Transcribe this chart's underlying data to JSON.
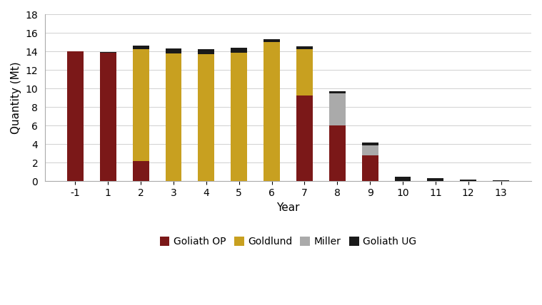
{
  "years": [
    -1,
    1,
    2,
    3,
    4,
    5,
    6,
    7,
    8,
    9,
    10,
    11,
    12,
    13
  ],
  "goliath_op": [
    14.0,
    13.9,
    2.2,
    0.0,
    0.0,
    0.0,
    0.0,
    9.3,
    6.0,
    2.8,
    0.0,
    0.0,
    0.0,
    0.0
  ],
  "goldlund": [
    0.0,
    0.0,
    12.1,
    13.8,
    13.7,
    13.9,
    15.0,
    5.0,
    0.0,
    0.0,
    0.0,
    0.0,
    0.0,
    0.0
  ],
  "miller": [
    0.0,
    0.0,
    0.0,
    0.0,
    0.0,
    0.0,
    0.0,
    0.0,
    3.5,
    1.1,
    0.0,
    0.0,
    0.0,
    0.0
  ],
  "goliath_ug": [
    0.0,
    0.05,
    0.35,
    0.55,
    0.55,
    0.55,
    0.35,
    0.25,
    0.25,
    0.3,
    0.5,
    0.35,
    0.2,
    0.1
  ],
  "colors": {
    "goliath_op": "#7B1818",
    "goldlund": "#C8A020",
    "miller": "#AAAAAA",
    "goliath_ug": "#1A1A1A"
  },
  "ylabel": "Quantity (Mt)",
  "xlabel": "Year",
  "ylim": [
    0,
    18
  ],
  "yticks": [
    0,
    2,
    4,
    6,
    8,
    10,
    12,
    14,
    16,
    18
  ],
  "legend_labels": [
    "Goliath OP",
    "Goldlund",
    "Miller",
    "Goliath UG"
  ],
  "background_color": "#FFFFFF",
  "bar_width": 0.5
}
